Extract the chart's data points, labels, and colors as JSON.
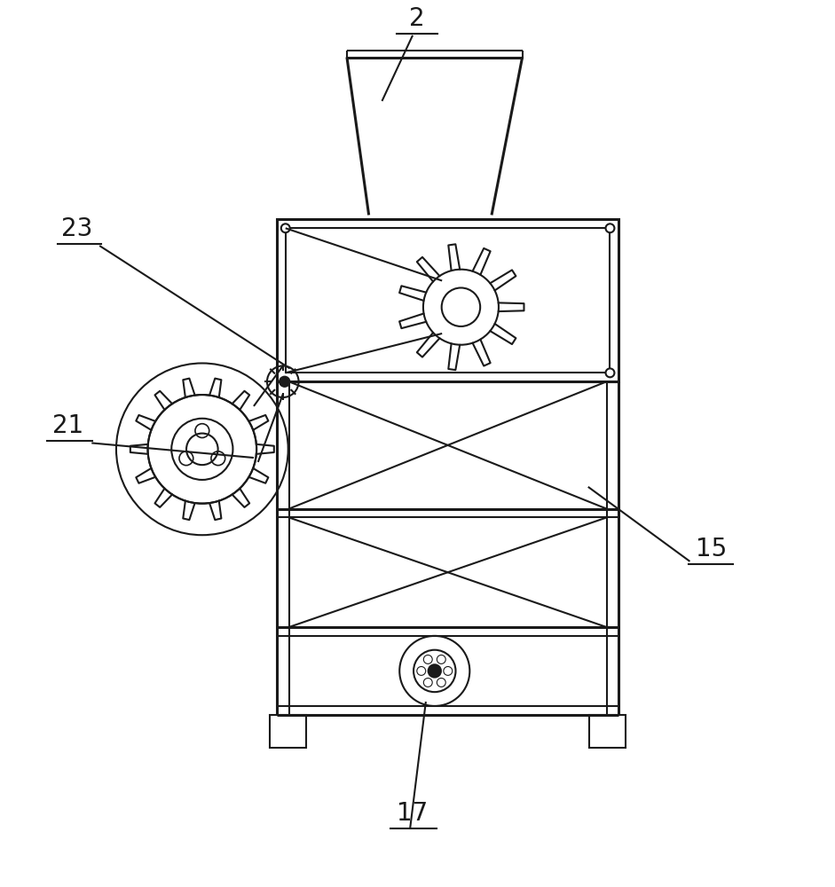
{
  "bg_color": "#ffffff",
  "line_color": "#1a1a1a",
  "lw": 1.5,
  "lw_thick": 2.2,
  "label_fontsize": 20
}
